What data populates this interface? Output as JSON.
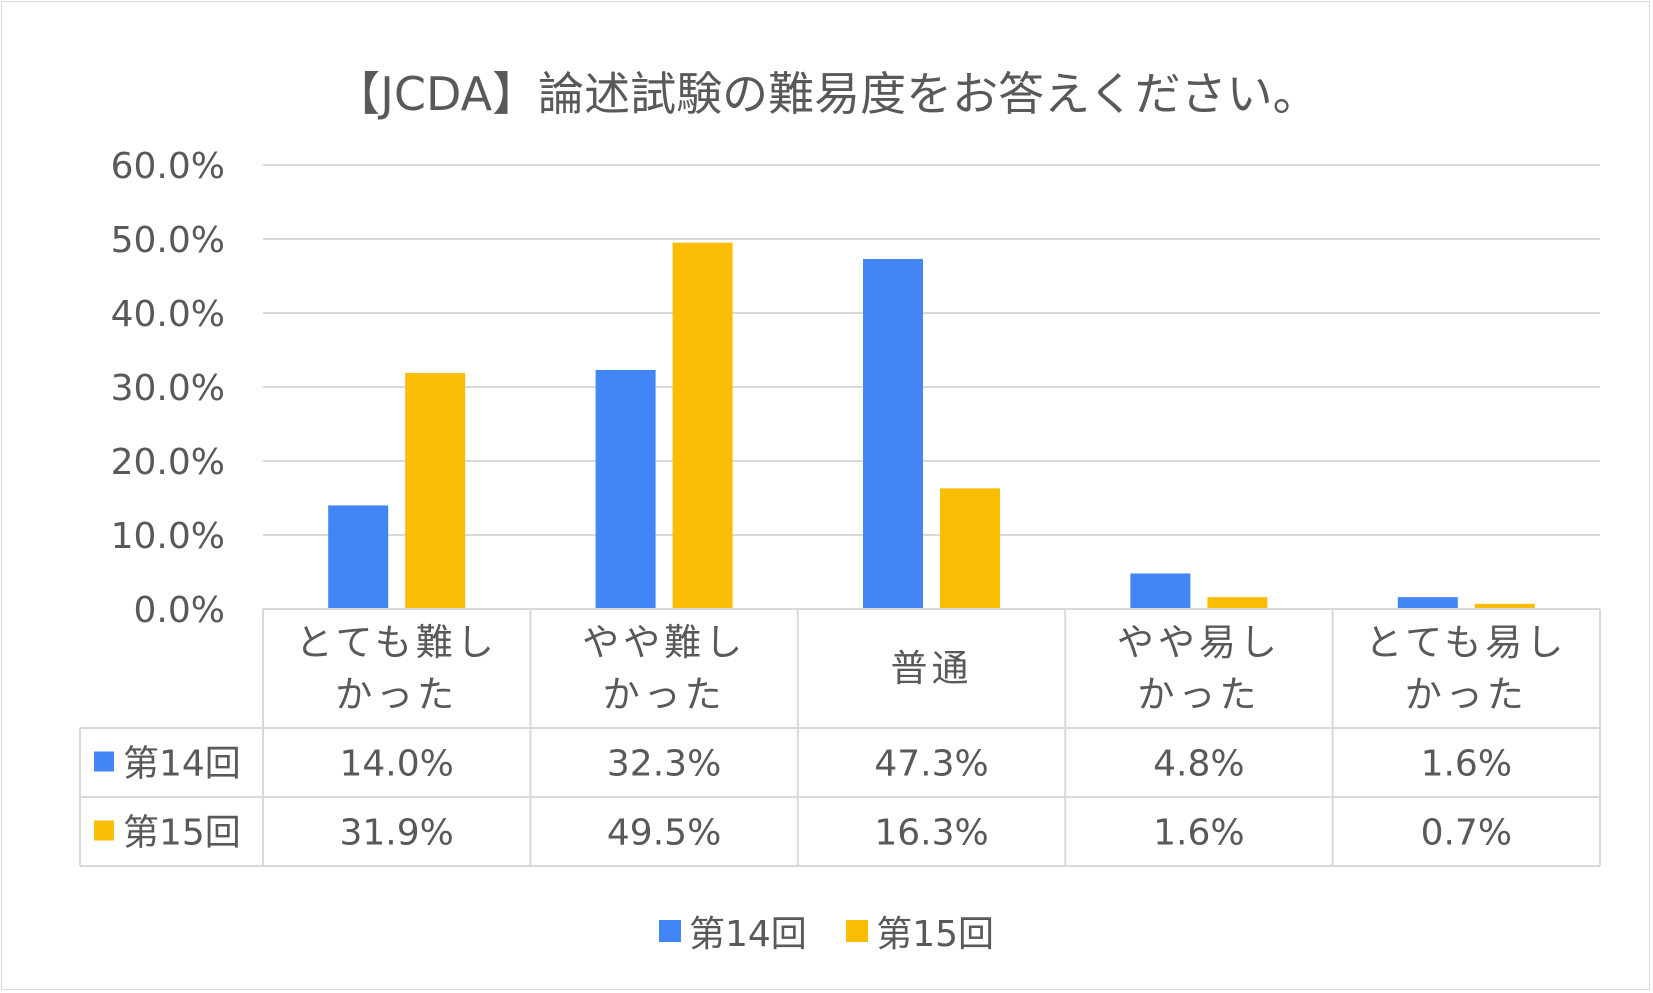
{
  "chart_data": {
    "type": "bar",
    "title": "【JCDA】論述試験の難易度をお答えください。",
    "categories": [
      [
        "とても難し",
        "かった"
      ],
      [
        "やや難し",
        "かった"
      ],
      [
        "普通"
      ],
      [
        "やや易し",
        "かった"
      ],
      [
        "とても易し",
        "かった"
      ]
    ],
    "series": [
      {
        "name": "第14回",
        "color": "#4285f4",
        "values": [
          14.0,
          32.3,
          47.3,
          4.8,
          1.6
        ],
        "labels": [
          "14.0%",
          "32.3%",
          "47.3%",
          "4.8%",
          "1.6%"
        ]
      },
      {
        "name": "第15回",
        "color": "#fbbc04",
        "values": [
          31.9,
          49.5,
          16.3,
          1.6,
          0.7
        ],
        "labels": [
          "31.9%",
          "49.5%",
          "16.3%",
          "1.6%",
          "0.7%"
        ]
      }
    ],
    "yticks": [
      "0.0%",
      "10.0%",
      "20.0%",
      "30.0%",
      "40.0%",
      "50.0%",
      "60.0%"
    ],
    "ylim": [
      0,
      60
    ],
    "grid": true,
    "data_table": true,
    "legend_position": "bottom"
  }
}
